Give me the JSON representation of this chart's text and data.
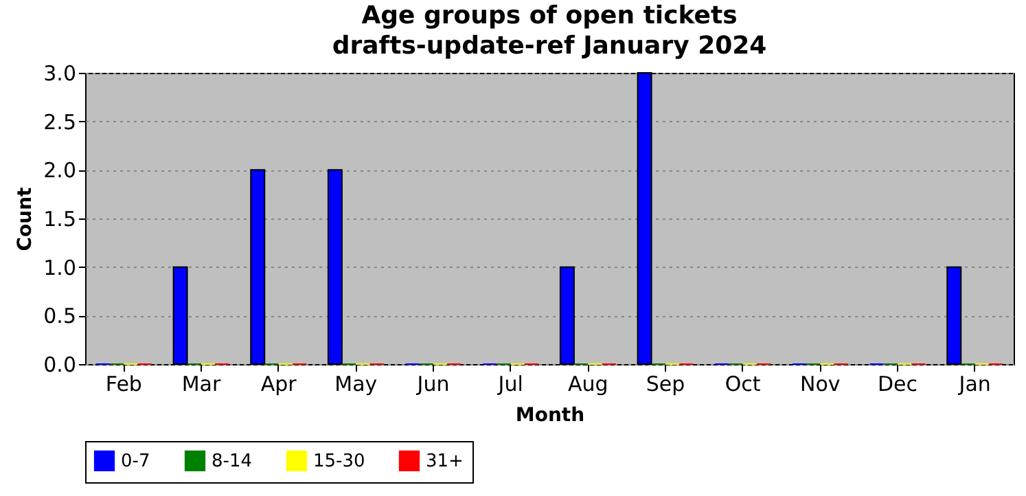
{
  "chart_data": {
    "type": "bar",
    "title": "Age groups of open tickets\ndrafts-update-ref January 2024",
    "xlabel": "Month",
    "ylabel": "Count",
    "categories": [
      "Feb",
      "Mar",
      "Apr",
      "May",
      "Jun",
      "Jul",
      "Aug",
      "Sep",
      "Oct",
      "Nov",
      "Dec",
      "Jan"
    ],
    "series": [
      {
        "name": "0-7",
        "color": "#0000ff",
        "values": [
          0,
          1,
          2,
          2,
          0,
          0,
          1,
          3,
          0,
          0,
          0,
          1
        ]
      },
      {
        "name": "8-14",
        "color": "#008000",
        "values": [
          0,
          0,
          0,
          0,
          0,
          0,
          0,
          0,
          0,
          0,
          0,
          0
        ]
      },
      {
        "name": "15-30",
        "color": "#ffff00",
        "values": [
          0,
          0,
          0,
          0,
          0,
          0,
          0,
          0,
          0,
          0,
          0,
          0
        ]
      },
      {
        "name": "31+",
        "color": "#ff0000",
        "values": [
          0,
          0,
          0,
          0,
          0,
          0,
          0,
          0,
          0,
          0,
          0,
          0
        ]
      }
    ],
    "ylim": [
      0,
      3
    ],
    "yticks": [
      {
        "value": 0,
        "label": "0.0"
      },
      0.5,
      {
        "value": 1,
        "label": "1.0"
      },
      1.5,
      {
        "value": 2,
        "label": "2.0"
      },
      2.5,
      {
        "value": 3,
        "label": "3.0"
      }
    ],
    "grid": "y",
    "legend": "bottom"
  }
}
